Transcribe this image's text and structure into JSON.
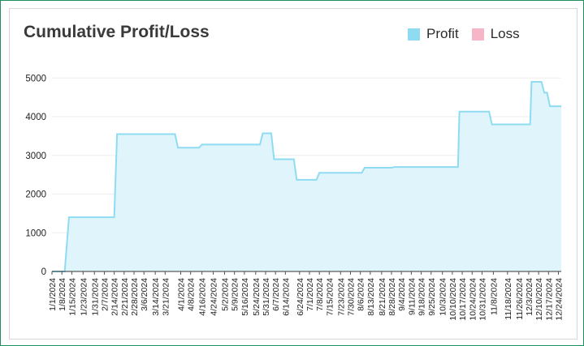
{
  "chart_data": {
    "type": "area",
    "title": "Cumulative Profit/Loss",
    "legend": [
      {
        "label": "Profit",
        "color": "#8fdcf2"
      },
      {
        "label": "Loss",
        "color": "#f7b6c8"
      }
    ],
    "legend_position": "top-right",
    "grid": true,
    "ylim": [
      0,
      5500
    ],
    "yticks": [
      0,
      1000,
      2000,
      3000,
      4000,
      5000
    ],
    "x_tick_labels": [
      "1/1/2024",
      "1/8/2024",
      "1/15/2024",
      "1/23/2024",
      "1/31/2024",
      "2/7/2024",
      "2/14/2024",
      "2/21/2024",
      "2/28/2024",
      "3/6/2024",
      "3/14/2024",
      "3/21/2024",
      "4/1/2024",
      "4/8/2024",
      "4/16/2024",
      "4/24/2024",
      "5/2/2024",
      "5/9/2024",
      "5/16/2024",
      "5/24/2024",
      "5/31/2024",
      "6/7/2024",
      "6/14/2024",
      "6/24/2024",
      "7/1/2024",
      "7/8/2024",
      "7/15/2024",
      "7/23/2024",
      "7/30/2024",
      "8/6/2024",
      "8/13/2024",
      "8/21/2024",
      "8/28/2024",
      "9/4/2024",
      "9/11/2024",
      "9/18/2024",
      "9/25/2024",
      "10/3/2024",
      "10/10/2024",
      "10/17/2024",
      "10/24/2024",
      "10/31/2024",
      "11/8/2024",
      "11/18/2024",
      "11/26/2024",
      "12/3/2024",
      "12/10/2024",
      "12/17/2024",
      "12/24/2024"
    ],
    "series": [
      {
        "name": "Profit",
        "color": "#8fdcf2",
        "points": [
          {
            "x": "1/1/2024",
            "y": 0
          },
          {
            "x": "1/10/2024",
            "y": 0
          },
          {
            "x": "1/13/2024",
            "y": 1400
          },
          {
            "x": "2/14/2024",
            "y": 1400
          },
          {
            "x": "2/16/2024",
            "y": 3550
          },
          {
            "x": "3/28/2024",
            "y": 3550
          },
          {
            "x": "3/30/2024",
            "y": 3200
          },
          {
            "x": "4/14/2024",
            "y": 3200
          },
          {
            "x": "4/16/2024",
            "y": 3280
          },
          {
            "x": "5/27/2024",
            "y": 3280
          },
          {
            "x": "5/29/2024",
            "y": 3570
          },
          {
            "x": "6/4/2024",
            "y": 3570
          },
          {
            "x": "6/6/2024",
            "y": 2900
          },
          {
            "x": "6/20/2024",
            "y": 2900
          },
          {
            "x": "6/22/2024",
            "y": 2370
          },
          {
            "x": "7/6/2024",
            "y": 2370
          },
          {
            "x": "7/8/2024",
            "y": 2550
          },
          {
            "x": "8/7/2024",
            "y": 2550
          },
          {
            "x": "8/9/2024",
            "y": 2680
          },
          {
            "x": "8/28/2024",
            "y": 2680
          },
          {
            "x": "8/30/2024",
            "y": 2700
          },
          {
            "x": "10/14/2024",
            "y": 2700
          },
          {
            "x": "10/15/2024",
            "y": 4130
          },
          {
            "x": "11/5/2024",
            "y": 4130
          },
          {
            "x": "11/7/2024",
            "y": 3800
          },
          {
            "x": "12/4/2024",
            "y": 3800
          },
          {
            "x": "12/5/2024",
            "y": 4900
          },
          {
            "x": "12/12/2024",
            "y": 4900
          },
          {
            "x": "12/14/2024",
            "y": 4620
          },
          {
            "x": "12/16/2024",
            "y": 4620
          },
          {
            "x": "12/18/2024",
            "y": 4270
          },
          {
            "x": "12/26/2024",
            "y": 4270
          }
        ]
      },
      {
        "name": "Loss",
        "color": "#f7b6c8",
        "points": []
      }
    ]
  }
}
